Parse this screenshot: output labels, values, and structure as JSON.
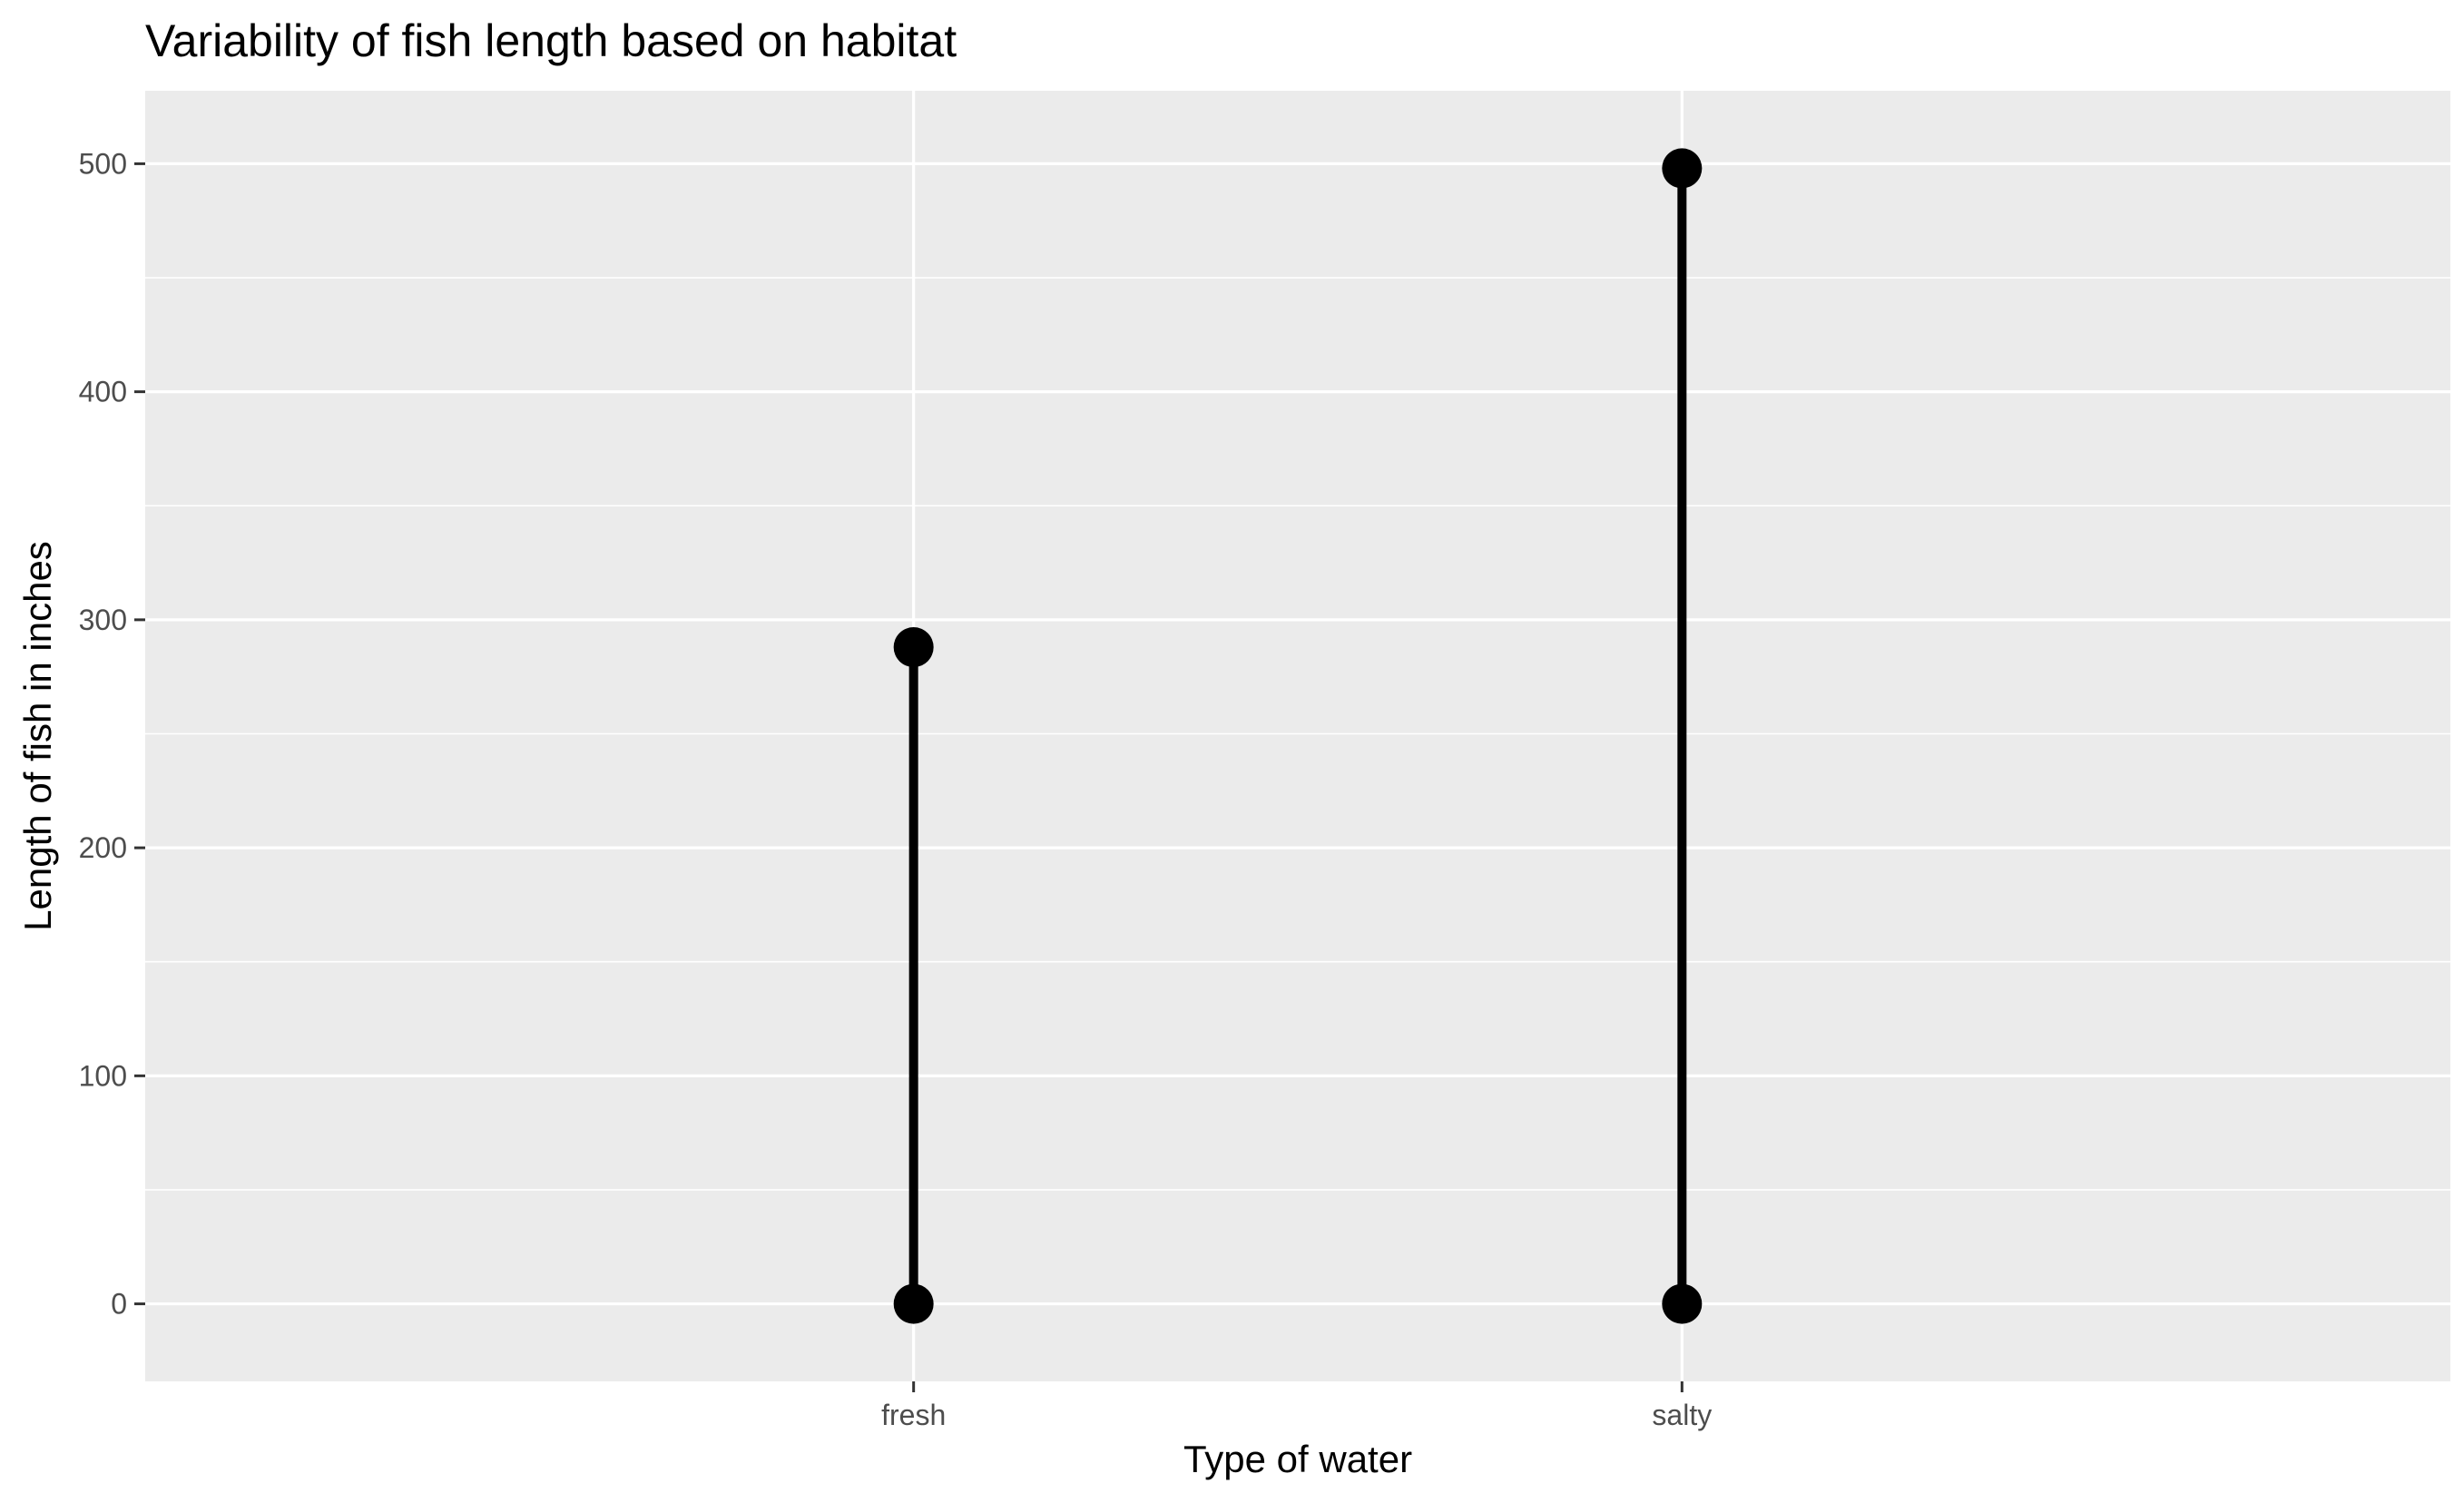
{
  "chart_data": {
    "type": "lollipop",
    "title": "Variability of fish length based on habitat",
    "xlabel": "Type of water",
    "ylabel": "Length of fish in inches",
    "categories": [
      "fresh",
      "salty"
    ],
    "ranges": [
      {
        "category": "fresh",
        "min": 0,
        "max": 288
      },
      {
        "category": "salty",
        "min": 0,
        "max": 498
      }
    ],
    "ylim": [
      -34,
      532
    ],
    "yticks": [
      0,
      100,
      200,
      300,
      400,
      500
    ],
    "yticks_minor": [
      50,
      150,
      250,
      350,
      450
    ],
    "grid": true,
    "legend": "none",
    "colors": {
      "panel_background": "#EBEBEB",
      "grid": "#FFFFFF",
      "mark": "#000000",
      "tick": "#333333"
    }
  }
}
